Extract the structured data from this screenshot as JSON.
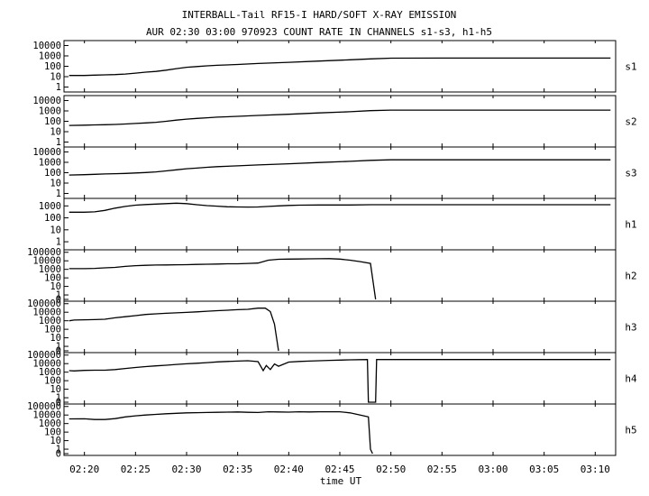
{
  "title_line1": "INTERBALL-Tail RF15-I HARD/SOFT X-RAY EMISSION",
  "title_line2": "AUR 02:30 03:00 970923  COUNT RATE IN CHANNELS s1-s3, h1-h5",
  "chart_data": {
    "type": "line",
    "xlabel": "time UT",
    "x_tick_labels": [
      "02:20",
      "02:25",
      "02:30",
      "02:35",
      "02:40",
      "02:45",
      "02:50",
      "02:55",
      "03:00",
      "03:05",
      "03:10"
    ],
    "x_tick_minutes": [
      20,
      25,
      30,
      35,
      40,
      45,
      50,
      55,
      60,
      65,
      70
    ],
    "x_range_minutes": [
      18,
      72
    ],
    "y_scale": "log",
    "grid": false,
    "panels": [
      {
        "name": "s1",
        "y_tick_labels": [
          "10000",
          "1000",
          "100",
          "10",
          "1"
        ],
        "y_tick_values": [
          10000,
          1000,
          100,
          10,
          1
        ],
        "ylim": [
          0.5,
          20000
        ],
        "x": [
          18.5,
          20,
          21,
          22,
          23,
          24,
          25,
          26,
          27,
          28,
          29,
          30,
          31,
          32,
          33,
          35,
          37,
          40,
          43,
          46,
          48,
          50,
          55,
          60,
          65,
          70,
          71.5
        ],
        "y": [
          13,
          13,
          14,
          15,
          16,
          18,
          22,
          27,
          32,
          42,
          60,
          80,
          95,
          110,
          125,
          150,
          185,
          240,
          320,
          420,
          520,
          600,
          620,
          620,
          620,
          620,
          620
        ]
      },
      {
        "name": "s2",
        "y_tick_labels": [
          "10000",
          "1000",
          "100",
          "10",
          "1"
        ],
        "y_tick_values": [
          10000,
          1000,
          100,
          10,
          1
        ],
        "ylim": [
          0.5,
          20000
        ],
        "x": [
          18.5,
          20,
          21,
          22,
          23,
          24,
          25,
          26,
          27,
          28,
          29,
          30,
          31,
          32,
          33,
          35,
          37,
          40,
          43,
          46,
          48,
          50,
          55,
          60,
          65,
          70,
          71.5
        ],
        "y": [
          40,
          42,
          45,
          47,
          50,
          55,
          62,
          70,
          80,
          100,
          130,
          160,
          190,
          220,
          250,
          300,
          370,
          480,
          640,
          840,
          1050,
          1200,
          1200,
          1200,
          1200,
          1200,
          1200
        ]
      },
      {
        "name": "s3",
        "y_tick_labels": [
          "10000",
          "1000",
          "100",
          "10",
          "1"
        ],
        "y_tick_values": [
          10000,
          1000,
          100,
          10,
          1
        ],
        "ylim": [
          0.5,
          20000
        ],
        "x": [
          18.5,
          20,
          21,
          22,
          23,
          24,
          25,
          26,
          27,
          28,
          29,
          30,
          31,
          32,
          33,
          35,
          37,
          40,
          43,
          46,
          48,
          50,
          55,
          60,
          65,
          70,
          71.5
        ],
        "y": [
          60,
          65,
          70,
          75,
          80,
          85,
          95,
          105,
          120,
          150,
          190,
          240,
          280,
          330,
          380,
          460,
          560,
          720,
          950,
          1250,
          1550,
          1750,
          1750,
          1750,
          1750,
          1750,
          1750
        ]
      },
      {
        "name": "h1",
        "y_tick_labels": [
          "1000",
          "100",
          "10",
          "1"
        ],
        "y_tick_values": [
          1000,
          100,
          10,
          1
        ],
        "ylim": [
          0.3,
          3000
        ],
        "x": [
          18.5,
          20,
          21,
          22,
          23,
          24,
          25,
          26,
          27,
          28,
          29,
          30,
          31,
          32,
          33,
          34,
          35,
          36,
          37,
          38,
          39,
          40,
          41,
          43,
          46,
          48,
          50,
          55,
          60,
          65,
          70,
          71.5
        ],
        "y": [
          300,
          300,
          320,
          420,
          650,
          900,
          1150,
          1300,
          1420,
          1550,
          1700,
          1550,
          1250,
          1050,
          950,
          850,
          820,
          800,
          820,
          900,
          1000,
          1100,
          1150,
          1200,
          1200,
          1250,
          1250,
          1250,
          1250,
          1250,
          1250,
          1250
        ]
      },
      {
        "name": "h2",
        "y_tick_labels": [
          "100000",
          "10000",
          "1000",
          "100",
          "10",
          "1",
          "0"
        ],
        "y_tick_values": [
          100000,
          10000,
          1000,
          100,
          10,
          1,
          0
        ],
        "ylim": [
          0.3,
          120000
        ],
        "x": [
          18.5,
          20,
          21,
          22,
          23,
          24,
          25,
          26,
          27,
          28,
          29,
          30,
          31,
          32,
          33,
          34,
          35,
          36,
          37,
          38,
          39,
          40,
          41,
          42,
          43,
          44,
          45,
          46,
          47,
          48,
          48.5
        ],
        "y": [
          1200,
          1200,
          1300,
          1500,
          1700,
          2200,
          2700,
          3000,
          3200,
          3300,
          3400,
          3500,
          3800,
          4000,
          4200,
          4500,
          4500,
          5000,
          5500,
          12000,
          15000,
          16000,
          16500,
          17000,
          17500,
          18000,
          16000,
          12000,
          8000,
          5000,
          0.3
        ]
      },
      {
        "name": "h3",
        "y_tick_labels": [
          "100000",
          "10000",
          "1000",
          "100",
          "10",
          "1",
          "0"
        ],
        "y_tick_values": [
          100000,
          10000,
          1000,
          100,
          10,
          1,
          0
        ],
        "ylim": [
          0.3,
          120000
        ],
        "x": [
          18.5,
          19,
          20,
          21,
          22,
          23,
          24,
          25,
          26,
          27,
          28,
          29,
          30,
          31,
          32,
          33,
          34,
          35,
          36,
          37,
          37.7,
          38.2,
          38.6,
          39
        ],
        "y": [
          1000,
          1200,
          1300,
          1350,
          1500,
          2200,
          3000,
          4000,
          5500,
          6500,
          7500,
          8500,
          9500,
          11000,
          13000,
          15000,
          17000,
          20000,
          22000,
          30000,
          30000,
          12000,
          400,
          0.3
        ]
      },
      {
        "name": "h4",
        "y_tick_labels": [
          "100000",
          "10000",
          "1000",
          "100",
          "10",
          "1",
          "0"
        ],
        "y_tick_values": [
          100000,
          10000,
          1000,
          100,
          10,
          1,
          0
        ],
        "ylim": [
          0.3,
          120000
        ],
        "x": [
          18.5,
          19,
          20,
          21,
          22,
          23,
          24,
          25,
          26,
          27,
          28,
          29,
          30,
          31,
          32,
          33,
          34,
          35,
          36,
          37,
          37.5,
          37.8,
          38.2,
          38.6,
          39,
          40,
          41,
          42,
          43,
          44,
          45,
          46,
          47,
          47.7,
          47.8,
          48.5,
          48.6,
          49,
          50,
          55,
          60,
          65,
          70,
          71.5
        ],
        "y": [
          1500,
          1400,
          1600,
          1700,
          1700,
          2000,
          2700,
          3500,
          4500,
          5500,
          6500,
          8000,
          9500,
          11000,
          13000,
          16000,
          18000,
          20000,
          22000,
          17000,
          1500,
          6000,
          2000,
          9000,
          5000,
          15000,
          18000,
          20000,
          22000,
          24000,
          26000,
          28000,
          29000,
          30000,
          0.3,
          0.3,
          30000,
          30000,
          30000,
          30000,
          30000,
          30000,
          30000,
          30000
        ]
      },
      {
        "name": "h5",
        "y_tick_labels": [
          "100000",
          "10000",
          "1000",
          "100",
          "10",
          "1",
          "0"
        ],
        "y_tick_values": [
          100000,
          10000,
          1000,
          100,
          10,
          1,
          0
        ],
        "ylim": [
          0.3,
          120000
        ],
        "x": [
          18.5,
          20,
          21,
          22,
          23,
          24,
          25,
          26,
          27,
          28,
          29,
          30,
          31,
          32,
          33,
          34,
          35,
          36,
          37,
          38,
          39,
          40,
          41,
          42,
          43,
          44,
          45,
          46,
          47,
          47.8,
          48,
          48.2
        ],
        "y": [
          3500,
          3600,
          3000,
          3000,
          3800,
          6000,
          8000,
          10000,
          12000,
          14000,
          16000,
          18000,
          19000,
          20000,
          21000,
          22000,
          23000,
          21000,
          20000,
          24000,
          23000,
          22000,
          24000,
          23000,
          24000,
          24000,
          24000,
          18000,
          10000,
          6000,
          1,
          0.3
        ]
      }
    ]
  }
}
